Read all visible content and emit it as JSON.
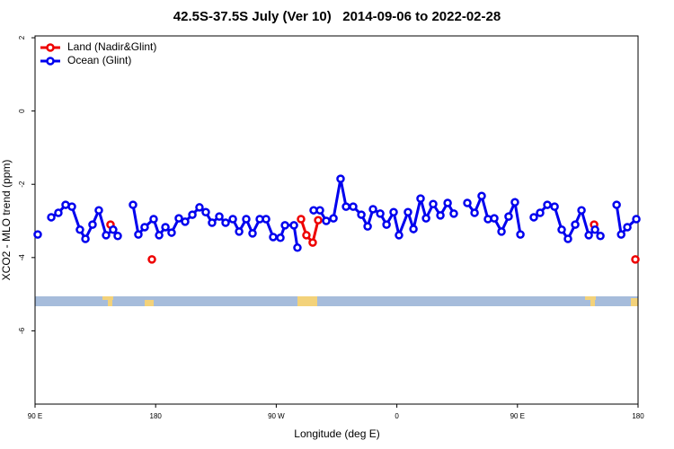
{
  "chart_data": {
    "type": "line",
    "title": "42.5S-37.5S July (Ver 10)   2014-09-06 to 2022-02-28",
    "x_label": "Longitude (deg E)",
    "y_label": "XCO2 - MLO trend (ppm)",
    "xlim": [
      90,
      540
    ],
    "ylim": [
      -8,
      2.05
    ],
    "xticks": [
      {
        "value": 90,
        "label": "90 E"
      },
      180,
      {
        "value": 270,
        "label": "90 W"
      },
      {
        "value": 360,
        "label": "0"
      },
      {
        "value": 450,
        "label": "90 E"
      },
      {
        "value": 540,
        "label": "180"
      }
    ],
    "yticks": [
      -6,
      -4,
      -2,
      0,
      2
    ],
    "legend": "top-left",
    "series": [
      {
        "name": "Land (Nadir&Glint)",
        "color": "#ee0000",
        "x": [
          146.3,
          null,
          177.2,
          null,
          288.5,
          292.5,
          297.2,
          301.3,
          null,
          507.2,
          null,
          538.0
        ],
        "values": [
          -3.1,
          null,
          -4.05,
          null,
          -2.95,
          -3.39,
          -3.59,
          -2.98,
          null,
          -3.1,
          null,
          -4.05
        ]
      },
      {
        "name": "Ocean (Glint)",
        "color": "#0000ee",
        "x": [
          92.0,
          null,
          102.1,
          107.4,
          112.8,
          117.5,
          123.5,
          127.6,
          132.9,
          137.6,
          143.0,
          148.3,
          151.7,
          null,
          163.1,
          167.1,
          171.8,
          178.5,
          182.6,
          187.3,
          191.9,
          197.3,
          202.0,
          207.4,
          212.7,
          217.4,
          222.1,
          227.5,
          232.2,
          237.6,
          242.3,
          247.6,
          252.3,
          257.7,
          262.4,
          267.7,
          273.1,
          276.5,
          283.2,
          285.8,
          null,
          297.9,
          302.6,
          307.3,
          312.7,
          318.0,
          322.1,
          327.4,
          333.5,
          338.2,
          342.2,
          347.6,
          352.3,
          357.6,
          361.6,
          368.3,
          372.4,
          377.7,
          381.8,
          387.1,
          392.5,
          397.9,
          402.5,
          null,
          412.6,
          418.0,
          423.3,
          428.0,
          432.7,
          438.1,
          443.4,
          448.1,
          452.2,
          null,
          462.2,
          466.9,
          472.3,
          477.7,
          483.0,
          487.7,
          493.1,
          497.8,
          503.2,
          507.9,
          511.9,
          null,
          524.0,
          527.4,
          532.0,
          538.7
        ],
        "values": [
          -3.37,
          null,
          -2.9,
          -2.78,
          -2.56,
          -2.61,
          -3.24,
          -3.49,
          -3.1,
          -2.71,
          -3.39,
          -3.24,
          -3.41,
          null,
          -2.56,
          -3.37,
          -3.17,
          -2.95,
          -3.39,
          -3.17,
          -3.32,
          -2.93,
          -3.02,
          -2.83,
          -2.63,
          -2.76,
          -3.05,
          -2.88,
          -3.05,
          -2.95,
          -3.29,
          -2.95,
          -3.34,
          -2.95,
          -2.95,
          -3.44,
          -3.46,
          -3.12,
          -3.12,
          -3.73,
          null,
          -2.71,
          -2.71,
          -3.0,
          -2.93,
          -1.85,
          -2.61,
          -2.61,
          -2.83,
          -3.15,
          -2.68,
          -2.8,
          -3.1,
          -2.76,
          -3.39,
          -2.76,
          -3.22,
          -2.39,
          -2.93,
          -2.54,
          -2.85,
          -2.51,
          -2.8,
          null,
          -2.51,
          -2.78,
          -2.32,
          -2.95,
          -2.93,
          -3.29,
          -2.88,
          -2.49,
          -3.37,
          null,
          -2.9,
          -2.78,
          -2.56,
          -2.61,
          -3.24,
          -3.49,
          -3.1,
          -2.71,
          -3.39,
          -3.24,
          -3.41,
          null,
          -2.56,
          -3.37,
          -3.17,
          -2.95
        ]
      }
    ]
  }
}
